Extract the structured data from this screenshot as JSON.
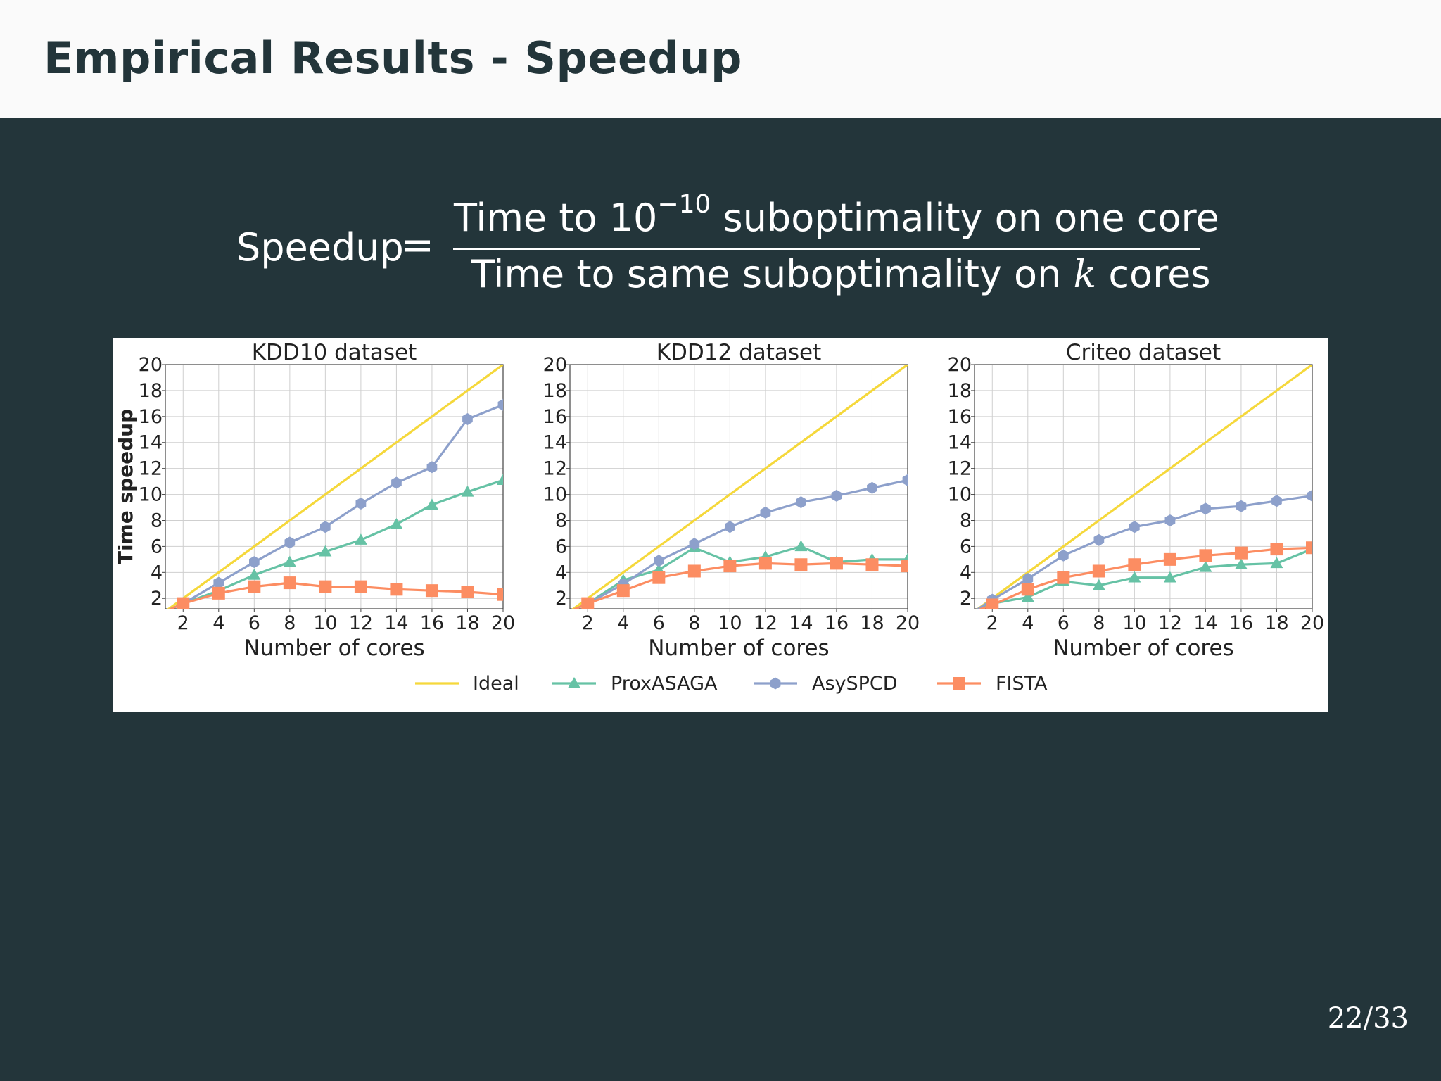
{
  "slide": {
    "title": "Empirical Results - Speedup",
    "page_number": "22/33"
  },
  "formula": {
    "lhs": "Speedup",
    "equals": "=",
    "numerator_prefix": "Time to 10",
    "numerator_exponent": "−10",
    "numerator_suffix": " suboptimality on one core",
    "denominator_prefix": "Time to same suboptimality on ",
    "denominator_var": "k",
    "denominator_suffix": " cores"
  },
  "chart_data": [
    {
      "type": "line",
      "title": "KDD10 dataset",
      "xlabel": "Number of cores",
      "ylabel": "Time speedup",
      "x": [
        1,
        2,
        4,
        6,
        8,
        10,
        12,
        14,
        16,
        18,
        20
      ],
      "xticks": [
        2,
        4,
        6,
        8,
        10,
        12,
        14,
        16,
        18,
        20
      ],
      "yticks": [
        2,
        4,
        6,
        8,
        10,
        12,
        14,
        16,
        18,
        20
      ],
      "xlim": [
        1,
        20
      ],
      "ylim": [
        1.2,
        20
      ],
      "grid": true,
      "series": [
        {
          "name": "Ideal",
          "marker": "none",
          "values": [
            1,
            2,
            4,
            6,
            8,
            10,
            12,
            14,
            16,
            18,
            20
          ]
        },
        {
          "name": "ProxASAGA",
          "marker": "triangle",
          "values": [
            1,
            1.6,
            2.6,
            3.8,
            4.8,
            5.6,
            6.5,
            7.7,
            9.2,
            10.2,
            11.1
          ]
        },
        {
          "name": "AsySPCD",
          "marker": "hexagon",
          "values": [
            1,
            1.6,
            3.2,
            4.8,
            6.3,
            7.5,
            9.3,
            10.9,
            12.1,
            15.8,
            16.9
          ]
        },
        {
          "name": "FISTA",
          "marker": "square",
          "values": [
            1,
            1.6,
            2.4,
            2.9,
            3.2,
            2.9,
            2.9,
            2.7,
            2.6,
            2.5,
            2.3
          ]
        }
      ]
    },
    {
      "type": "line",
      "title": "KDD12 dataset",
      "xlabel": "Number of cores",
      "ylabel": "",
      "x": [
        1,
        2,
        4,
        6,
        8,
        10,
        12,
        14,
        16,
        18,
        20
      ],
      "xticks": [
        2,
        4,
        6,
        8,
        10,
        12,
        14,
        16,
        18,
        20
      ],
      "yticks": [
        2,
        4,
        6,
        8,
        10,
        12,
        14,
        16,
        18,
        20
      ],
      "xlim": [
        1,
        20
      ],
      "ylim": [
        1.2,
        20
      ],
      "grid": true,
      "series": [
        {
          "name": "Ideal",
          "marker": "none",
          "values": [
            1,
            2,
            4,
            6,
            8,
            10,
            12,
            14,
            16,
            18,
            20
          ]
        },
        {
          "name": "ProxASAGA",
          "marker": "triangle",
          "values": [
            1,
            1.6,
            3.4,
            4.2,
            5.9,
            4.8,
            5.2,
            6.0,
            4.8,
            5.0,
            5.0
          ]
        },
        {
          "name": "AsySPCD",
          "marker": "hexagon",
          "values": [
            1,
            1.6,
            3.1,
            4.9,
            6.2,
            7.5,
            8.6,
            9.4,
            9.9,
            10.5,
            11.1
          ]
        },
        {
          "name": "FISTA",
          "marker": "square",
          "values": [
            1,
            1.6,
            2.6,
            3.6,
            4.1,
            4.5,
            4.7,
            4.6,
            4.7,
            4.6,
            4.5
          ]
        }
      ]
    },
    {
      "type": "line",
      "title": "Criteo dataset",
      "xlabel": "Number of cores",
      "ylabel": "",
      "x": [
        1,
        2,
        4,
        6,
        8,
        10,
        12,
        14,
        16,
        18,
        20
      ],
      "xticks": [
        2,
        4,
        6,
        8,
        10,
        12,
        14,
        16,
        18,
        20
      ],
      "yticks": [
        2,
        4,
        6,
        8,
        10,
        12,
        14,
        16,
        18,
        20
      ],
      "xlim": [
        1,
        20
      ],
      "ylim": [
        1.2,
        20
      ],
      "grid": true,
      "series": [
        {
          "name": "Ideal",
          "marker": "none",
          "values": [
            1,
            2,
            4,
            6,
            8,
            10,
            12,
            14,
            16,
            18,
            20
          ]
        },
        {
          "name": "ProxASAGA",
          "marker": "triangle",
          "values": [
            1,
            1.6,
            2.1,
            3.3,
            3.0,
            3.6,
            3.6,
            4.4,
            4.6,
            4.7,
            5.8
          ]
        },
        {
          "name": "AsySPCD",
          "marker": "hexagon",
          "values": [
            1,
            1.9,
            3.5,
            5.3,
            6.5,
            7.5,
            8.0,
            8.9,
            9.1,
            9.5,
            9.9
          ]
        },
        {
          "name": "FISTA",
          "marker": "square",
          "values": [
            1,
            1.5,
            2.7,
            3.6,
            4.1,
            4.6,
            5.0,
            5.3,
            5.5,
            5.8,
            5.9
          ]
        }
      ]
    }
  ],
  "legend": {
    "placement": "bottom-center",
    "entries": [
      "Ideal",
      "ProxASAGA",
      "AsySPCD",
      "FISTA"
    ]
  },
  "colors": {
    "Ideal": "#f5d83b",
    "ProxASAGA": "#66c2a5",
    "AsySPCD": "#8da0cb",
    "FISTA": "#fc8d62",
    "background": "#23353a",
    "header": "#fafafa"
  }
}
